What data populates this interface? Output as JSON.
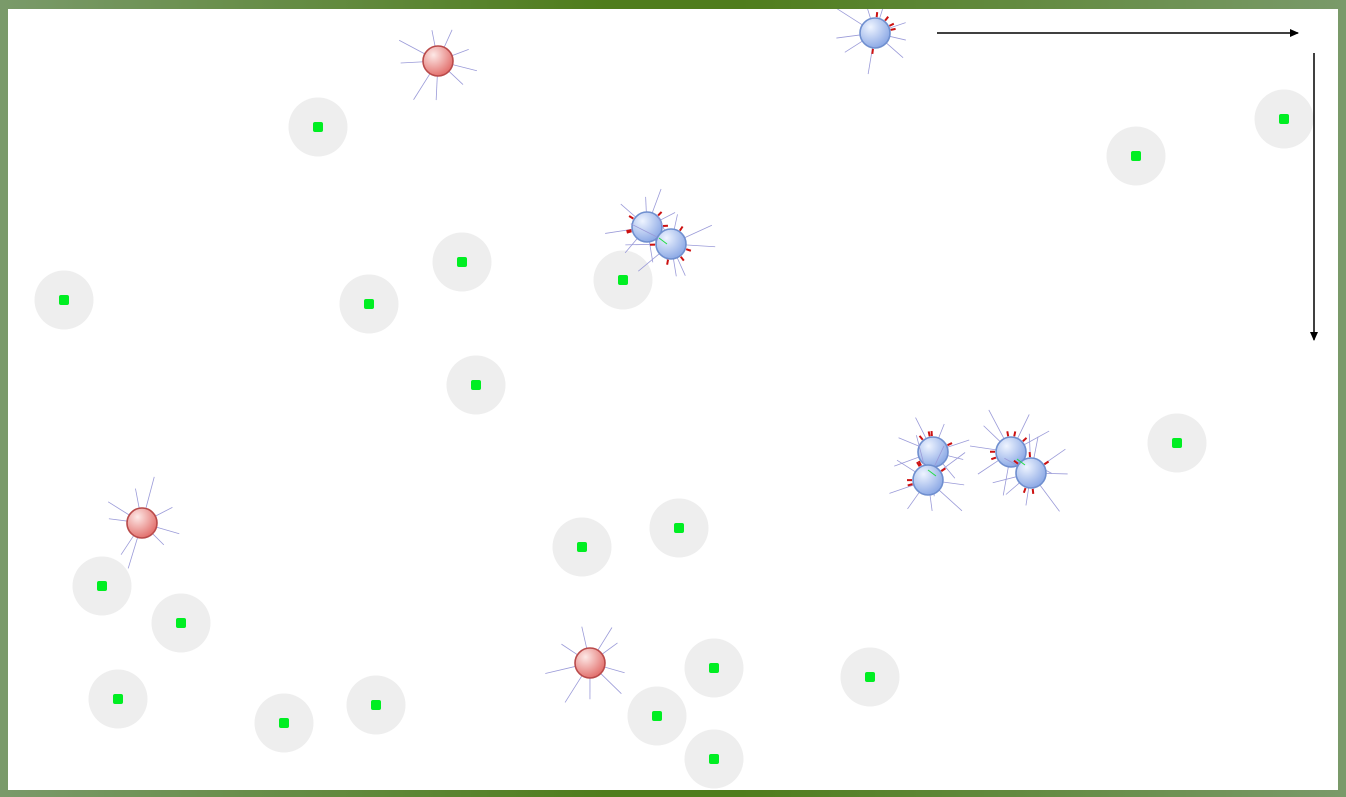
{
  "colors": {
    "frame_dark": "#4f7d1c",
    "frame_light": "#7a9a6a",
    "arena_bg": "#ffffff",
    "food_halo": "#eeeeee",
    "food_dot": "#00ee22",
    "agent_blue_fill": "#a9c1ee",
    "agent_blue_stroke": "#6f8fcf",
    "agent_red_fill": "#ee8a88",
    "agent_red_stroke": "#b94a4a",
    "sensor_line": "#9a9ad8",
    "arrow": "#000000"
  },
  "icons": {
    "food": "food-pellet-icon",
    "blue_agent": "blue-agent-icon",
    "red_agent": "red-agent-icon",
    "axis_arrow": "arrow-icon"
  }
}
